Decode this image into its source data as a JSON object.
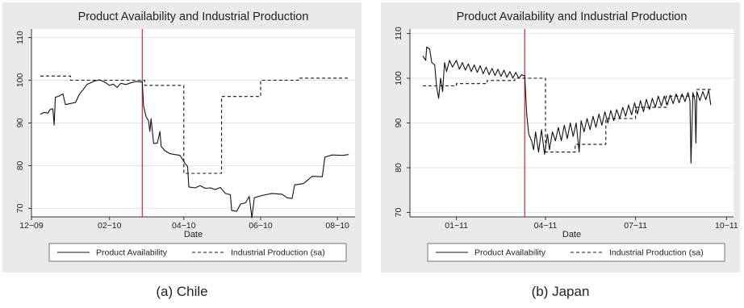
{
  "chart_data": [
    {
      "type": "line",
      "title": "Product Availability and Industrial Production",
      "xlabel": "Date",
      "ylabel": "",
      "caption": "(a)  Chile",
      "x_domain": [
        "2009-12-01",
        "2010-08-15"
      ],
      "xticks": [
        {
          "date": "2009-12-01",
          "label": "12−09"
        },
        {
          "date": "2010-02-01",
          "label": "02−10"
        },
        {
          "date": "2010-04-01",
          "label": "04−10"
        },
        {
          "date": "2010-06-01",
          "label": "06−10"
        },
        {
          "date": "2010-08-01",
          "label": "08−10"
        }
      ],
      "ylim": [
        68,
        112
      ],
      "yticks": [
        70,
        80,
        90,
        100,
        110
      ],
      "grid": "horizontal",
      "legend_position": "bottom",
      "event_line": {
        "date": "2010-02-27",
        "color": "#d62728"
      },
      "series": [
        {
          "name": "Product Availability",
          "style": "solid",
          "points": [
            [
              "2009-12-08",
              92.0
            ],
            [
              "2009-12-11",
              92.5
            ],
            [
              "2009-12-14",
              92.3
            ],
            [
              "2009-12-16",
              93.2
            ],
            [
              "2009-12-18",
              93.3
            ],
            [
              "2009-12-19",
              89.5
            ],
            [
              "2009-12-20",
              96.0
            ],
            [
              "2009-12-23",
              96.3
            ],
            [
              "2009-12-26",
              96.8
            ],
            [
              "2009-12-28",
              94.3
            ],
            [
              "2010-01-02",
              94.6
            ],
            [
              "2010-01-05",
              94.8
            ],
            [
              "2010-01-08",
              96.7
            ],
            [
              "2010-01-11",
              97.8
            ],
            [
              "2010-01-14",
              99.0
            ],
            [
              "2010-01-17",
              99.4
            ],
            [
              "2010-01-20",
              99.8
            ],
            [
              "2010-01-24",
              100.1
            ],
            [
              "2010-01-28",
              99.6
            ],
            [
              "2010-02-01",
              98.8
            ],
            [
              "2010-02-04",
              99.1
            ],
            [
              "2010-02-07",
              98.3
            ],
            [
              "2010-02-10",
              99.3
            ],
            [
              "2010-02-14",
              99.0
            ],
            [
              "2010-02-18",
              99.4
            ],
            [
              "2010-02-22",
              99.7
            ],
            [
              "2010-02-26",
              99.6
            ],
            [
              "2010-02-27",
              99.7
            ],
            [
              "2010-02-28",
              94.0
            ],
            [
              "2010-03-02",
              91.5
            ],
            [
              "2010-03-04",
              90.5
            ],
            [
              "2010-03-05",
              88.0
            ],
            [
              "2010-03-06",
              91.0
            ],
            [
              "2010-03-08",
              85.2
            ],
            [
              "2010-03-11",
              85.3
            ],
            [
              "2010-03-13",
              88.0
            ],
            [
              "2010-03-14",
              84.5
            ],
            [
              "2010-03-17",
              83.5
            ],
            [
              "2010-03-21",
              82.8
            ],
            [
              "2010-03-25",
              82.6
            ],
            [
              "2010-03-29",
              82.4
            ],
            [
              "2010-04-02",
              80.5
            ],
            [
              "2010-04-04",
              79.8
            ],
            [
              "2010-04-05",
              75.0
            ],
            [
              "2010-04-10",
              74.8
            ],
            [
              "2010-04-14",
              75.3
            ],
            [
              "2010-04-18",
              74.7
            ],
            [
              "2010-04-22",
              74.8
            ],
            [
              "2010-04-26",
              74.4
            ],
            [
              "2010-04-30",
              74.9
            ],
            [
              "2010-05-04",
              73.5
            ],
            [
              "2010-05-08",
              73.2
            ],
            [
              "2010-05-09",
              69.5
            ],
            [
              "2010-05-13",
              69.3
            ],
            [
              "2010-05-16",
              71.0
            ],
            [
              "2010-05-20",
              71.3
            ],
            [
              "2010-05-23",
              72.8
            ],
            [
              "2010-05-25",
              67.8
            ],
            [
              "2010-05-27",
              72.5
            ],
            [
              "2010-06-02",
              73.0
            ],
            [
              "2010-06-10",
              73.5
            ],
            [
              "2010-06-18",
              73.3
            ],
            [
              "2010-06-22",
              72.5
            ],
            [
              "2010-06-26",
              72.3
            ],
            [
              "2010-06-28",
              75.5
            ],
            [
              "2010-07-05",
              75.8
            ],
            [
              "2010-07-12",
              77.5
            ],
            [
              "2010-07-20",
              77.4
            ],
            [
              "2010-07-22",
              82.0
            ],
            [
              "2010-07-28",
              82.5
            ],
            [
              "2010-08-05",
              82.4
            ],
            [
              "2010-08-10",
              82.6
            ]
          ]
        },
        {
          "name": "Industrial Production (sa)",
          "style": "dashed",
          "points": [
            [
              "2009-12-08",
              101.0
            ],
            [
              "2010-01-01",
              101.0
            ],
            [
              "2010-01-01",
              100.0
            ],
            [
              "2010-03-01",
              100.0
            ],
            [
              "2010-03-01",
              98.8
            ],
            [
              "2010-04-01",
              98.8
            ],
            [
              "2010-04-01",
              78.2
            ],
            [
              "2010-05-01",
              78.2
            ],
            [
              "2010-05-01",
              96.2
            ],
            [
              "2010-06-01",
              96.2
            ],
            [
              "2010-06-01",
              100.0
            ],
            [
              "2010-07-01",
              100.0
            ],
            [
              "2010-07-01",
              100.5
            ],
            [
              "2010-08-10",
              100.5
            ]
          ]
        }
      ]
    },
    {
      "type": "line",
      "title": "Product Availability and Industrial Production",
      "xlabel": "Date",
      "ylabel": "",
      "caption": "(b)  Japan",
      "x_domain": [
        "2010-11-15",
        "2011-10-08"
      ],
      "xticks": [
        {
          "date": "2011-01-01",
          "label": "01−11"
        },
        {
          "date": "2011-04-01",
          "label": "04−11"
        },
        {
          "date": "2011-07-01",
          "label": "07−11"
        },
        {
          "date": "2011-10-01",
          "label": "10−11"
        }
      ],
      "ylim": [
        69,
        111
      ],
      "yticks": [
        70,
        80,
        90,
        100,
        110
      ],
      "grid": "horizontal",
      "legend_position": "bottom",
      "event_line": {
        "date": "2011-03-11",
        "color": "#d62728"
      },
      "series": [
        {
          "name": "Product Availability",
          "style": "solid",
          "points": [
            [
              "2010-11-28",
              105.0
            ],
            [
              "2010-12-01",
              104.0
            ],
            [
              "2010-12-02",
              107.0
            ],
            [
              "2010-12-05",
              106.5
            ],
            [
              "2010-12-07",
              103.5
            ],
            [
              "2010-12-10",
              103.0
            ],
            [
              "2010-12-12",
              98.0
            ],
            [
              "2010-12-14",
              95.5
            ],
            [
              "2010-12-16",
              100.0
            ],
            [
              "2010-12-18",
              97.0
            ],
            [
              "2010-12-20",
              103.5
            ],
            [
              "2010-12-22",
              101.5
            ],
            [
              "2010-12-25",
              104.0
            ],
            [
              "2010-12-28",
              102.5
            ],
            [
              "2011-01-01",
              104.0
            ],
            [
              "2011-01-04",
              102.0
            ],
            [
              "2011-01-07",
              103.5
            ],
            [
              "2011-01-10",
              101.8
            ],
            [
              "2011-01-13",
              103.2
            ],
            [
              "2011-01-16",
              101.5
            ],
            [
              "2011-01-19",
              103.0
            ],
            [
              "2011-01-22",
              101.3
            ],
            [
              "2011-01-25",
              102.8
            ],
            [
              "2011-01-28",
              101.0
            ],
            [
              "2011-01-31",
              102.5
            ],
            [
              "2011-02-03",
              100.8
            ],
            [
              "2011-02-06",
              102.2
            ],
            [
              "2011-02-09",
              100.6
            ],
            [
              "2011-02-12",
              102.0
            ],
            [
              "2011-02-15",
              100.4
            ],
            [
              "2011-02-18",
              101.8
            ],
            [
              "2011-02-21",
              100.2
            ],
            [
              "2011-02-24",
              101.5
            ],
            [
              "2011-02-27",
              100.0
            ],
            [
              "2011-03-02",
              101.3
            ],
            [
              "2011-03-05",
              100.0
            ],
            [
              "2011-03-08",
              100.8
            ],
            [
              "2011-03-11",
              100.5
            ],
            [
              "2011-03-13",
              92.0
            ],
            [
              "2011-03-15",
              87.5
            ],
            [
              "2011-03-18",
              86.0
            ],
            [
              "2011-03-20",
              84.0
            ],
            [
              "2011-03-22",
              88.0
            ],
            [
              "2011-03-25",
              83.5
            ],
            [
              "2011-03-28",
              88.5
            ],
            [
              "2011-03-31",
              83.0
            ],
            [
              "2011-04-03",
              87.5
            ],
            [
              "2011-04-05",
              84.0
            ],
            [
              "2011-04-08",
              88.0
            ],
            [
              "2011-04-11",
              86.0
            ],
            [
              "2011-04-14",
              89.0
            ],
            [
              "2011-04-17",
              86.0
            ],
            [
              "2011-04-20",
              89.5
            ],
            [
              "2011-04-23",
              86.5
            ],
            [
              "2011-04-26",
              90.0
            ],
            [
              "2011-04-29",
              87.0
            ],
            [
              "2011-05-02",
              90.0
            ],
            [
              "2011-05-05",
              83.5
            ],
            [
              "2011-05-07",
              90.5
            ],
            [
              "2011-05-10",
              88.0
            ],
            [
              "2011-05-13",
              91.0
            ],
            [
              "2011-05-16",
              88.5
            ],
            [
              "2011-05-19",
              91.5
            ],
            [
              "2011-05-22",
              89.0
            ],
            [
              "2011-05-25",
              92.0
            ],
            [
              "2011-05-28",
              89.5
            ],
            [
              "2011-05-31",
              92.5
            ],
            [
              "2011-06-03",
              90.0
            ],
            [
              "2011-06-06",
              92.8
            ],
            [
              "2011-06-09",
              90.5
            ],
            [
              "2011-06-12",
              93.0
            ],
            [
              "2011-06-15",
              91.0
            ],
            [
              "2011-06-18",
              93.5
            ],
            [
              "2011-06-21",
              91.5
            ],
            [
              "2011-06-24",
              94.0
            ],
            [
              "2011-06-27",
              91.8
            ],
            [
              "2011-06-30",
              94.5
            ],
            [
              "2011-07-03",
              92.0
            ],
            [
              "2011-07-06",
              95.0
            ],
            [
              "2011-07-09",
              92.5
            ],
            [
              "2011-07-12",
              95.3
            ],
            [
              "2011-07-15",
              93.0
            ],
            [
              "2011-07-18",
              95.5
            ],
            [
              "2011-07-21",
              93.5
            ],
            [
              "2011-07-24",
              96.0
            ],
            [
              "2011-07-27",
              93.8
            ],
            [
              "2011-07-30",
              96.0
            ],
            [
              "2011-08-02",
              94.0
            ],
            [
              "2011-08-05",
              96.2
            ],
            [
              "2011-08-08",
              94.3
            ],
            [
              "2011-08-11",
              96.5
            ],
            [
              "2011-08-14",
              94.5
            ],
            [
              "2011-08-17",
              96.5
            ],
            [
              "2011-08-20",
              94.8
            ],
            [
              "2011-08-23",
              96.8
            ],
            [
              "2011-08-25",
              95.0
            ],
            [
              "2011-08-26",
              81.0
            ],
            [
              "2011-08-28",
              96.8
            ],
            [
              "2011-08-30",
              95.0
            ],
            [
              "2011-08-31",
              85.5
            ],
            [
              "2011-09-01",
              97.0
            ],
            [
              "2011-09-04",
              95.0
            ],
            [
              "2011-09-07",
              97.0
            ],
            [
              "2011-09-10",
              95.2
            ],
            [
              "2011-09-13",
              97.3
            ],
            [
              "2011-09-15",
              94.0
            ]
          ]
        },
        {
          "name": "Industrial Production (sa)",
          "style": "dashed",
          "points": [
            [
              "2010-11-28",
              98.3
            ],
            [
              "2011-01-01",
              98.3
            ],
            [
              "2011-01-01",
              98.8
            ],
            [
              "2011-02-01",
              98.8
            ],
            [
              "2011-02-01",
              99.5
            ],
            [
              "2011-03-01",
              99.5
            ],
            [
              "2011-03-01",
              100.0
            ],
            [
              "2011-04-01",
              100.0
            ],
            [
              "2011-04-01",
              83.5
            ],
            [
              "2011-05-01",
              83.5
            ],
            [
              "2011-05-01",
              85.2
            ],
            [
              "2011-06-01",
              85.2
            ],
            [
              "2011-06-01",
              91.0
            ],
            [
              "2011-07-01",
              91.0
            ],
            [
              "2011-07-01",
              93.5
            ],
            [
              "2011-08-01",
              93.5
            ],
            [
              "2011-08-01",
              96.0
            ],
            [
              "2011-09-01",
              96.0
            ],
            [
              "2011-09-01",
              97.5
            ],
            [
              "2011-09-15",
              97.5
            ]
          ]
        }
      ]
    }
  ]
}
